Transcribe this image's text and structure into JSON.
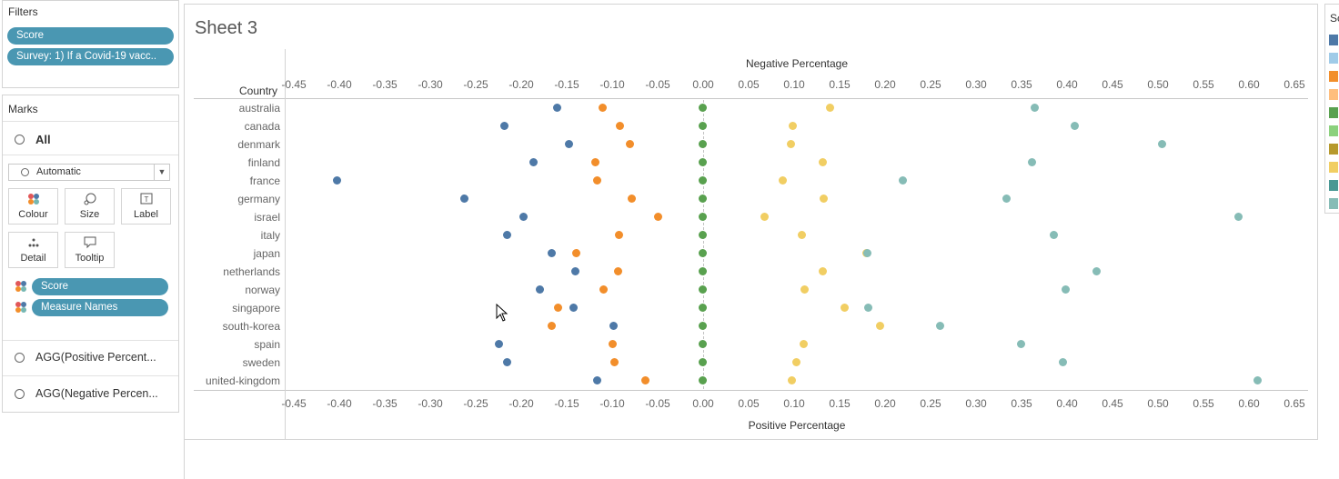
{
  "filters": {
    "title": "Filters",
    "pills": [
      "Score",
      "Survey: 1) If a Covid-19 vacc.."
    ]
  },
  "marks": {
    "title": "Marks",
    "all_label": "All",
    "mark_type": "Automatic",
    "buttons": {
      "colour": "Colour",
      "size": "Size",
      "label": "Label",
      "detail": "Detail",
      "tooltip": "Tooltip"
    },
    "fields": [
      "Score",
      "Measure Names"
    ],
    "agg_positive": "AGG(Positive Percent...",
    "agg_negative": "AGG(Negative Percen..."
  },
  "sheet": {
    "title": "Sheet 3"
  },
  "legend": {
    "title_partial": "Sc"
  },
  "colors": {
    "pill": "#4a97b2",
    "legend": [
      "#4e79a7",
      "#a0cbe8",
      "#f28e2b",
      "#ffbe7d",
      "#59a14f",
      "#8cd17d",
      "#b6992d",
      "#f1ce63",
      "#499894",
      "#86bcb6"
    ]
  },
  "chart_data": {
    "type": "scatter",
    "title": "Sheet 3",
    "row_header": "Country",
    "xlabel_top": "Negative Percentage",
    "xlabel_bottom": "Positive Percentage",
    "xlim": [
      -0.46,
      0.665
    ],
    "ticks": [
      "-0.45",
      "-0.40",
      "-0.35",
      "-0.30",
      "-0.25",
      "-0.20",
      "-0.15",
      "-0.10",
      "-0.05",
      "0.00",
      "0.05",
      "0.10",
      "0.15",
      "0.20",
      "0.25",
      "0.30",
      "0.35",
      "0.40",
      "0.45",
      "0.50",
      "0.55",
      "0.60",
      "0.65"
    ],
    "tick_values": [
      -0.45,
      -0.4,
      -0.35,
      -0.3,
      -0.25,
      -0.2,
      -0.15,
      -0.1,
      -0.05,
      0.0,
      0.05,
      0.1,
      0.15,
      0.2,
      0.25,
      0.3,
      0.35,
      0.4,
      0.45,
      0.5,
      0.55,
      0.6,
      0.65
    ],
    "categories": [
      "australia",
      "canada",
      "denmark",
      "finland",
      "france",
      "germany",
      "israel",
      "italy",
      "japan",
      "netherlands",
      "norway",
      "singapore",
      "south-korea",
      "spain",
      "sweden",
      "united-kingdom"
    ],
    "series": [
      {
        "color": "#4e79a7",
        "values": [
          -0.16,
          -0.218,
          -0.147,
          -0.186,
          -0.402,
          -0.262,
          -0.197,
          -0.215,
          -0.166,
          -0.14,
          -0.179,
          -0.142,
          -0.098,
          -0.224,
          -0.215,
          -0.116
        ]
      },
      {
        "color": "#f28e2b",
        "values": [
          -0.11,
          -0.091,
          -0.08,
          -0.118,
          -0.116,
          -0.078,
          -0.049,
          -0.092,
          -0.139,
          -0.093,
          -0.109,
          -0.159,
          -0.166,
          -0.099,
          -0.097,
          -0.063
        ]
      },
      {
        "color": "#59a14f",
        "values": [
          0,
          0,
          0,
          0,
          0,
          0,
          0,
          0,
          0,
          0,
          0,
          0,
          0,
          0,
          0,
          0
        ]
      },
      {
        "color": "#f1ce63",
        "values": [
          0.14,
          0.099,
          0.097,
          0.132,
          0.088,
          0.133,
          0.068,
          0.109,
          0.18,
          0.132,
          0.112,
          0.156,
          0.195,
          0.111,
          0.103,
          0.098
        ]
      },
      {
        "color": "#86bcb6",
        "values": [
          0.365,
          0.409,
          0.505,
          0.362,
          0.22,
          0.334,
          0.589,
          0.386,
          0.181,
          0.433,
          0.399,
          0.182,
          0.261,
          0.35,
          0.396,
          0.61
        ]
      }
    ]
  }
}
